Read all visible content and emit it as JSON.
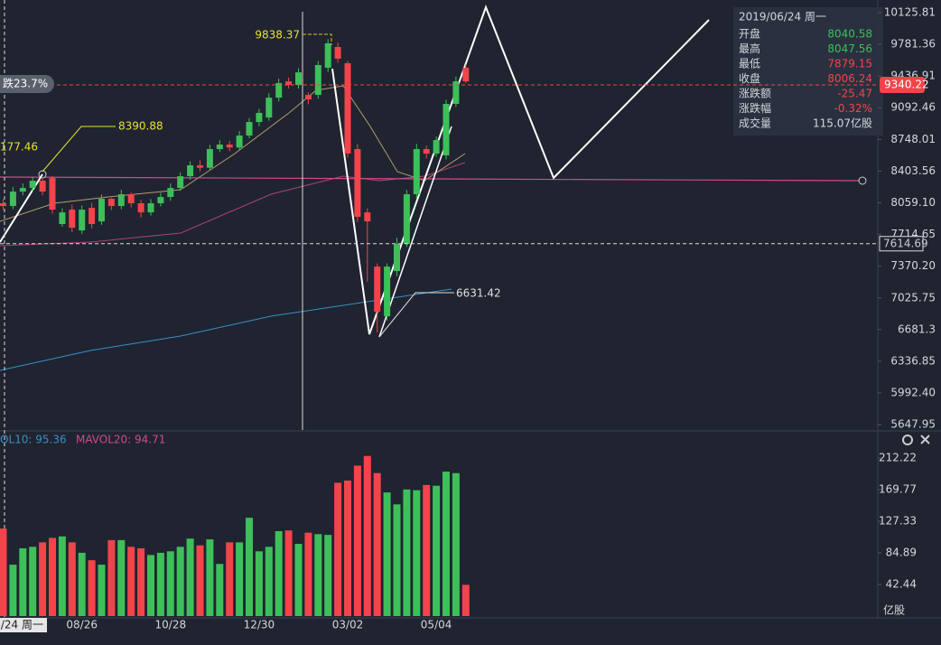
{
  "chart_data": [
    {
      "type": "candlestick",
      "categories": [
        null,
        null,
        null,
        null,
        null,
        null,
        null,
        null,
        "08/26",
        null,
        null,
        null,
        null,
        null,
        null,
        null,
        null,
        "10/28",
        null,
        null,
        null,
        null,
        null,
        null,
        null,
        null,
        "12/30",
        null,
        null,
        null,
        null,
        null,
        null,
        null,
        null,
        "03/02",
        null,
        null,
        null,
        null,
        null,
        null,
        null,
        null,
        "05/04",
        null,
        null,
        null
      ],
      "open": [
        8054,
        8024,
        8181,
        8220,
        8299,
        8328,
        7828,
        7985,
        7759,
        8004,
        7857,
        8103,
        8024,
        8152,
        8054,
        7955,
        8054,
        8122,
        8220,
        8348,
        8466,
        8440,
        8643,
        8692,
        8660,
        8790,
        8937,
        8986,
        9202,
        9379,
        9340,
        9232,
        9232,
        9527,
        9752,
        9576,
        8643,
        7955,
        7366,
        6826,
        7317,
        7612,
        8152,
        8643,
        8594,
        8574,
        9134,
        9527
      ],
      "close": [
        8024,
        8181,
        8220,
        8299,
        8181,
        7985,
        7955,
        7788,
        7985,
        7828,
        8103,
        8024,
        8152,
        8054,
        7955,
        8054,
        8122,
        8220,
        8348,
        8466,
        8440,
        8643,
        8692,
        8660,
        8790,
        8937,
        9036,
        9202,
        9360,
        9340,
        9477,
        9183,
        9556,
        9792,
        9625,
        8594,
        7906,
        7857,
        6875,
        7366,
        7612,
        8152,
        8643,
        8594,
        8741,
        9134,
        9379,
        9379
      ],
      "high": [
        8100,
        8230,
        8270,
        8340,
        8330,
        8350,
        8000,
        8040,
        8030,
        8060,
        8150,
        8110,
        8200,
        8170,
        8090,
        8100,
        8170,
        8270,
        8390,
        8510,
        8520,
        8690,
        8740,
        8730,
        8840,
        8980,
        9080,
        9250,
        9410,
        9420,
        9520,
        9260,
        9600,
        9838.37,
        9800,
        9600,
        8700,
        8000,
        7400,
        7400,
        7680,
        8200,
        8700,
        8680,
        8780,
        9180,
        9430,
        9560
      ],
      "low": [
        7980,
        7990,
        8140,
        8180,
        8140,
        7940,
        7800,
        7740,
        7720,
        7780,
        7820,
        7980,
        7990,
        8010,
        7900,
        7920,
        8020,
        8080,
        8190,
        8310,
        8400,
        8410,
        8610,
        8620,
        8630,
        8760,
        8890,
        8950,
        9160,
        9300,
        9300,
        9130,
        9190,
        9480,
        9580,
        8550,
        7850,
        7200,
        6650,
        6780,
        7260,
        7580,
        8100,
        8540,
        8560,
        8530,
        9100,
        9360
      ],
      "ylim": [
        5590,
        10263
      ],
      "yticks": [
        10125.81,
        9781.36,
        9436.91,
        9092.46,
        8748.01,
        8403.56,
        {
          "value": 8059.1,
          "label": "8059.10"
        },
        7714.65,
        {
          "value": 7370.2,
          "label": "7370.20"
        },
        7025.75,
        6681.3,
        6336.85,
        {
          "value": 5992.4,
          "label": "5992.40"
        },
        5647.95
      ],
      "up_color": "#3dbf5a",
      "down_color": "#f2444a",
      "crosshair_price": 7614.69,
      "last_price": 9340.22,
      "annotations": [
        8390.88,
        6631.42,
        177.46,
        "跌23.7%"
      ],
      "crosshair_date": "2019/06/24 周一"
    },
    {
      "type": "bar",
      "legend": [
        "OL10: 95.36",
        "MAVOL20: 94.71"
      ],
      "values": [
        117.6,
        69,
        91,
        93,
        99,
        105,
        107,
        99,
        85,
        75,
        69,
        102,
        102,
        93,
        91,
        82,
        85,
        87,
        93,
        104,
        95,
        103,
        70,
        99,
        99,
        132,
        87,
        93,
        114,
        115,
        97,
        112,
        110,
        109,
        179,
        182,
        202,
        215,
        192,
        166,
        150,
        170,
        169,
        176,
        175,
        194,
        192,
        42
      ],
      "ylim": [
        0,
        226.8
      ],
      "yticks": [
        212.22,
        169.77,
        127.33,
        84.89,
        42.44
      ],
      "unit": "亿股"
    }
  ],
  "info_panel": {
    "date": "2019/06/24 周一",
    "rows": [
      {
        "label": "开盘",
        "value": 8040.58,
        "color": "#3dbf5a"
      },
      {
        "label": "最高",
        "value": 8047.56,
        "color": "#3dbf5a"
      },
      {
        "label": "最低",
        "value": 7879.15,
        "color": "#f2444a"
      },
      {
        "label": "收盘",
        "value": 8006.24,
        "color": "#f2444a"
      },
      {
        "label": "涨跌额",
        "value": -25.47,
        "color": "#f2444a"
      },
      {
        "label": "涨跌幅",
        "value": "-0.32%",
        "color": "#f2444a"
      },
      {
        "label": "成交量",
        "value": "115.07亿股",
        "color": "#d4d7dd"
      }
    ]
  }
}
